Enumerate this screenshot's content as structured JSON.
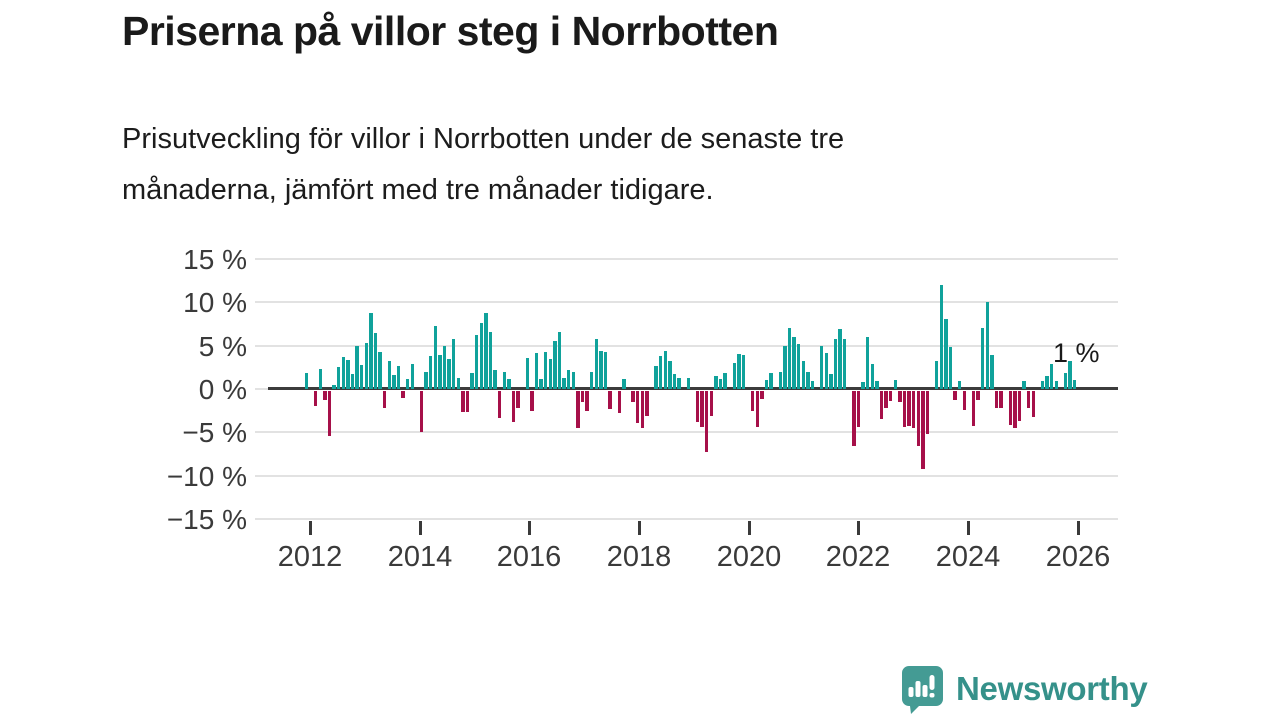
{
  "header": {
    "title": "Priserna på villor steg i Norrbotten",
    "subtitle": "Prisutveckling för villor i Norrbotten under de senaste tre\nmånaderna, jämfört med tre månader tidigare."
  },
  "chart_data": {
    "type": "bar",
    "title": "Priserna på villor steg i Norrbotten",
    "description": "Prisutveckling för villor i Norrbotten under de senaste tre månaderna, jämfört med tre månader tidigare.",
    "unit": "%",
    "frequency": "monthly",
    "start_month": "2012-01",
    "values": [
      1.8,
      0,
      -1.7,
      2.3,
      -1.0,
      -5.2,
      0.5,
      2.5,
      3.7,
      3.3,
      1.7,
      5.0,
      2.8,
      5.3,
      8.7,
      6.4,
      4.3,
      -1.9,
      3.2,
      1.6,
      2.6,
      -0.8,
      1.1,
      2.9,
      0,
      -4.7,
      2.0,
      3.8,
      7.3,
      3.9,
      4.9,
      3.4,
      5.7,
      1.3,
      -2.4,
      -2.4,
      1.8,
      6.2,
      7.6,
      8.8,
      6.6,
      2.2,
      -3.1,
      1.9,
      1.1,
      -3.6,
      -2.0,
      0,
      3.6,
      -2.3,
      4.1,
      1.1,
      4.3,
      3.4,
      5.5,
      6.6,
      1.3,
      2.2,
      2.0,
      -4.3,
      -1.3,
      -2.3,
      1.9,
      5.8,
      4.4,
      4.3,
      -2.1,
      0,
      -2.5,
      1.1,
      0,
      -1.3,
      -3.7,
      -4.3,
      -2.9,
      0,
      2.6,
      3.8,
      4.4,
      3.2,
      1.7,
      1.3,
      0,
      1.3,
      0,
      -3.6,
      -4.2,
      -7.0,
      -2.9,
      1.5,
      1.1,
      1.8,
      0,
      3.0,
      4.0,
      3.9,
      0,
      -2.3,
      -4.2,
      -0.9,
      1.0,
      1.8,
      0,
      2.0,
      5.0,
      7.0,
      6.0,
      5.2,
      3.2,
      2.0,
      0.9,
      0,
      4.9,
      4.2,
      1.7,
      5.8,
      6.9,
      5.7,
      0,
      -6.3,
      -4.2,
      0.8,
      6.0,
      2.9,
      0.9,
      -3.2,
      -2.0,
      -1.1,
      1.0,
      -1.3,
      -4.2,
      -4.0,
      -4.3,
      -6.3,
      -9.0,
      -5.0,
      0,
      3.2,
      12.0,
      8.0,
      4.8,
      -1.0,
      0.9,
      -2.2,
      0,
      -4.0,
      -1.0,
      7.0,
      10.0,
      3.9,
      -1.9,
      -2.0,
      0,
      -3.9,
      -4.3,
      -3.5,
      0.9,
      -1.9,
      -3.0,
      0,
      0.9,
      1.5,
      2.9,
      0.9,
      0,
      1.8,
      3.2,
      1.0
    ],
    "ylim": [
      -15,
      15
    ],
    "y_tick_labels": [
      "15 %",
      "10 %",
      "5 %",
      "0 %",
      "−5 %",
      "−10 %",
      "−15 %"
    ],
    "x_tick_labels": [
      "2012",
      "2014",
      "2016",
      "2018",
      "2020",
      "2022",
      "2024",
      "2026"
    ],
    "grid": true,
    "legend": "none",
    "latest_value_label": "1 %",
    "colors": {
      "positive": "#10a29b",
      "negative": "#a61049",
      "zero_line": "#3c3c3c",
      "gridline": "#e2e2e2",
      "text": "#1a1a1a",
      "axis_text": "#3a3a3a"
    }
  },
  "annotation": {
    "latest": "1 %"
  },
  "branding": {
    "wordmark": "Newsworthy",
    "icon": "newsworthy-chart-bubble-icon",
    "brand_color": "#35918a"
  }
}
